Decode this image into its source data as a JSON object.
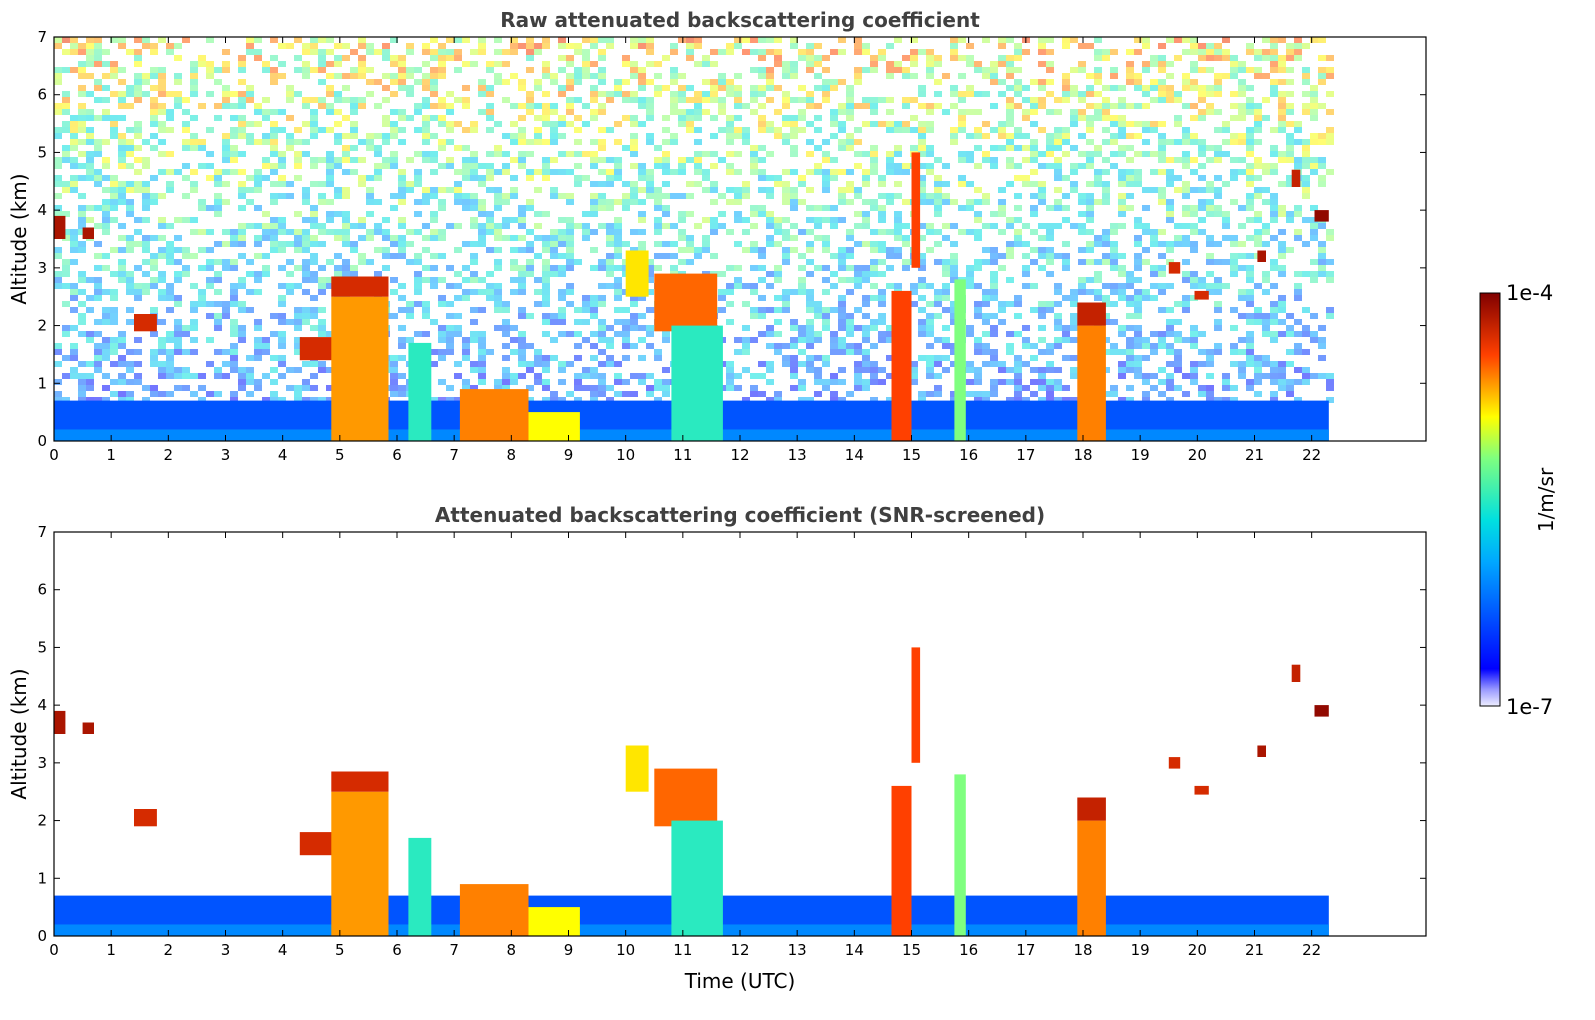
{
  "chart_data": [
    {
      "type": "heatmap",
      "title": "Raw attenuated backscattering coefficient",
      "xlabel": "",
      "ylabel": "Altitude (km)",
      "xlim": [
        0,
        24
      ],
      "ylim": [
        0,
        7
      ],
      "xticks": [
        0,
        1,
        2,
        3,
        4,
        5,
        6,
        7,
        8,
        9,
        10,
        11,
        12,
        13,
        14,
        15,
        16,
        17,
        18,
        19,
        20,
        21,
        22
      ],
      "yticks": [
        0,
        1,
        2,
        3,
        4,
        5,
        6,
        7
      ],
      "data_end_time": 22.3,
      "boundary_layer_top_km": 0.7,
      "background_noise": "speckle increasing with altitude (blue near surface to yellow/red aloft)",
      "features": [
        {
          "t0": 0.0,
          "t1": 0.2,
          "z0": 3.5,
          "z1": 3.9,
          "level": 0.95
        },
        {
          "t0": 0.5,
          "t1": 0.7,
          "z0": 3.5,
          "z1": 3.7,
          "level": 0.95
        },
        {
          "t0": 1.4,
          "t1": 1.8,
          "z0": 1.9,
          "z1": 2.2,
          "level": 0.9
        },
        {
          "t0": 4.3,
          "t1": 4.9,
          "z0": 1.4,
          "z1": 1.8,
          "level": 0.9
        },
        {
          "t0": 4.85,
          "t1": 5.85,
          "z0": 0.0,
          "z1": 2.5,
          "level": 0.78
        },
        {
          "t0": 4.85,
          "t1": 5.85,
          "z0": 2.5,
          "z1": 2.85,
          "level": 0.9
        },
        {
          "t0": 6.2,
          "t1": 6.6,
          "z0": 0.0,
          "z1": 1.7,
          "level": 0.5
        },
        {
          "t0": 7.1,
          "t1": 8.3,
          "z0": 0.0,
          "z1": 0.9,
          "level": 0.8
        },
        {
          "t0": 8.3,
          "t1": 9.2,
          "z0": 0.0,
          "z1": 0.5,
          "level": 0.7
        },
        {
          "t0": 10.0,
          "t1": 10.4,
          "z0": 2.5,
          "z1": 3.3,
          "level": 0.72
        },
        {
          "t0": 10.5,
          "t1": 11.6,
          "z0": 1.9,
          "z1": 2.9,
          "level": 0.82
        },
        {
          "t0": 10.8,
          "t1": 11.7,
          "z0": 0.0,
          "z1": 2.0,
          "level": 0.5
        },
        {
          "t0": 14.65,
          "t1": 15.0,
          "z0": 0.0,
          "z1": 2.6,
          "level": 0.85
        },
        {
          "t0": 15.0,
          "t1": 15.15,
          "z0": 3.0,
          "z1": 5.0,
          "level": 0.85
        },
        {
          "t0": 15.75,
          "t1": 15.95,
          "z0": 0.0,
          "z1": 2.8,
          "level": 0.6
        },
        {
          "t0": 17.9,
          "t1": 18.4,
          "z0": 0.0,
          "z1": 2.0,
          "level": 0.8
        },
        {
          "t0": 17.9,
          "t1": 18.4,
          "z0": 2.0,
          "z1": 2.4,
          "level": 0.92
        },
        {
          "t0": 19.5,
          "t1": 19.7,
          "z0": 2.9,
          "z1": 3.1,
          "level": 0.9
        },
        {
          "t0": 19.95,
          "t1": 20.2,
          "z0": 2.45,
          "z1": 2.6,
          "level": 0.9
        },
        {
          "t0": 21.05,
          "t1": 21.2,
          "z0": 3.1,
          "z1": 3.3,
          "level": 0.95
        },
        {
          "t0": 21.65,
          "t1": 21.8,
          "z0": 4.4,
          "z1": 4.7,
          "level": 0.92
        },
        {
          "t0": 22.05,
          "t1": 22.3,
          "z0": 3.8,
          "z1": 4.0,
          "level": 0.98
        }
      ]
    },
    {
      "type": "heatmap",
      "title": "Attenuated backscattering coefficient (SNR-screened)",
      "xlabel": "Time (UTC)",
      "ylabel": "Altitude (km)",
      "xlim": [
        0,
        24
      ],
      "ylim": [
        0,
        7
      ],
      "xticks": [
        0,
        1,
        2,
        3,
        4,
        5,
        6,
        7,
        8,
        9,
        10,
        11,
        12,
        13,
        14,
        15,
        16,
        17,
        18,
        19,
        20,
        21,
        22
      ],
      "yticks": [
        0,
        1,
        2,
        3,
        4,
        5,
        6,
        7
      ],
      "data_end_time": 22.3,
      "boundary_layer_top_km": 0.7,
      "background_noise": "removed (white) above boundary layer",
      "features": [
        {
          "t0": 0.0,
          "t1": 0.2,
          "z0": 3.5,
          "z1": 3.9,
          "level": 0.95
        },
        {
          "t0": 0.5,
          "t1": 0.7,
          "z0": 3.5,
          "z1": 3.7,
          "level": 0.95
        },
        {
          "t0": 1.4,
          "t1": 1.8,
          "z0": 1.9,
          "z1": 2.2,
          "level": 0.9
        },
        {
          "t0": 4.3,
          "t1": 4.9,
          "z0": 1.4,
          "z1": 1.8,
          "level": 0.9
        },
        {
          "t0": 4.85,
          "t1": 5.85,
          "z0": 0.0,
          "z1": 2.5,
          "level": 0.78
        },
        {
          "t0": 4.85,
          "t1": 5.85,
          "z0": 2.5,
          "z1": 2.85,
          "level": 0.9
        },
        {
          "t0": 6.2,
          "t1": 6.6,
          "z0": 0.0,
          "z1": 1.7,
          "level": 0.5
        },
        {
          "t0": 7.1,
          "t1": 8.3,
          "z0": 0.0,
          "z1": 0.9,
          "level": 0.8
        },
        {
          "t0": 8.3,
          "t1": 9.2,
          "z0": 0.0,
          "z1": 0.5,
          "level": 0.7
        },
        {
          "t0": 10.0,
          "t1": 10.4,
          "z0": 2.5,
          "z1": 3.3,
          "level": 0.72
        },
        {
          "t0": 10.5,
          "t1": 11.6,
          "z0": 1.9,
          "z1": 2.9,
          "level": 0.82
        },
        {
          "t0": 10.8,
          "t1": 11.7,
          "z0": 0.0,
          "z1": 2.0,
          "level": 0.5
        },
        {
          "t0": 14.65,
          "t1": 15.0,
          "z0": 0.0,
          "z1": 2.6,
          "level": 0.85
        },
        {
          "t0": 15.0,
          "t1": 15.15,
          "z0": 3.0,
          "z1": 5.0,
          "level": 0.85
        },
        {
          "t0": 15.75,
          "t1": 15.95,
          "z0": 0.0,
          "z1": 2.8,
          "level": 0.6
        },
        {
          "t0": 17.9,
          "t1": 18.4,
          "z0": 0.0,
          "z1": 2.0,
          "level": 0.8
        },
        {
          "t0": 17.9,
          "t1": 18.4,
          "z0": 2.0,
          "z1": 2.4,
          "level": 0.92
        },
        {
          "t0": 19.5,
          "t1": 19.7,
          "z0": 2.9,
          "z1": 3.1,
          "level": 0.9
        },
        {
          "t0": 19.95,
          "t1": 20.2,
          "z0": 2.45,
          "z1": 2.6,
          "level": 0.9
        },
        {
          "t0": 21.05,
          "t1": 21.2,
          "z0": 3.1,
          "z1": 3.3,
          "level": 0.95
        },
        {
          "t0": 21.65,
          "t1": 21.8,
          "z0": 4.4,
          "z1": 4.7,
          "level": 0.92
        },
        {
          "t0": 22.05,
          "t1": 22.3,
          "z0": 3.8,
          "z1": 4.0,
          "level": 0.98
        }
      ]
    }
  ],
  "colorbar": {
    "label": "1/m/sr",
    "min_label": "1e-7",
    "max_label": "1e-4",
    "scale": "log",
    "colormap": "jet"
  }
}
